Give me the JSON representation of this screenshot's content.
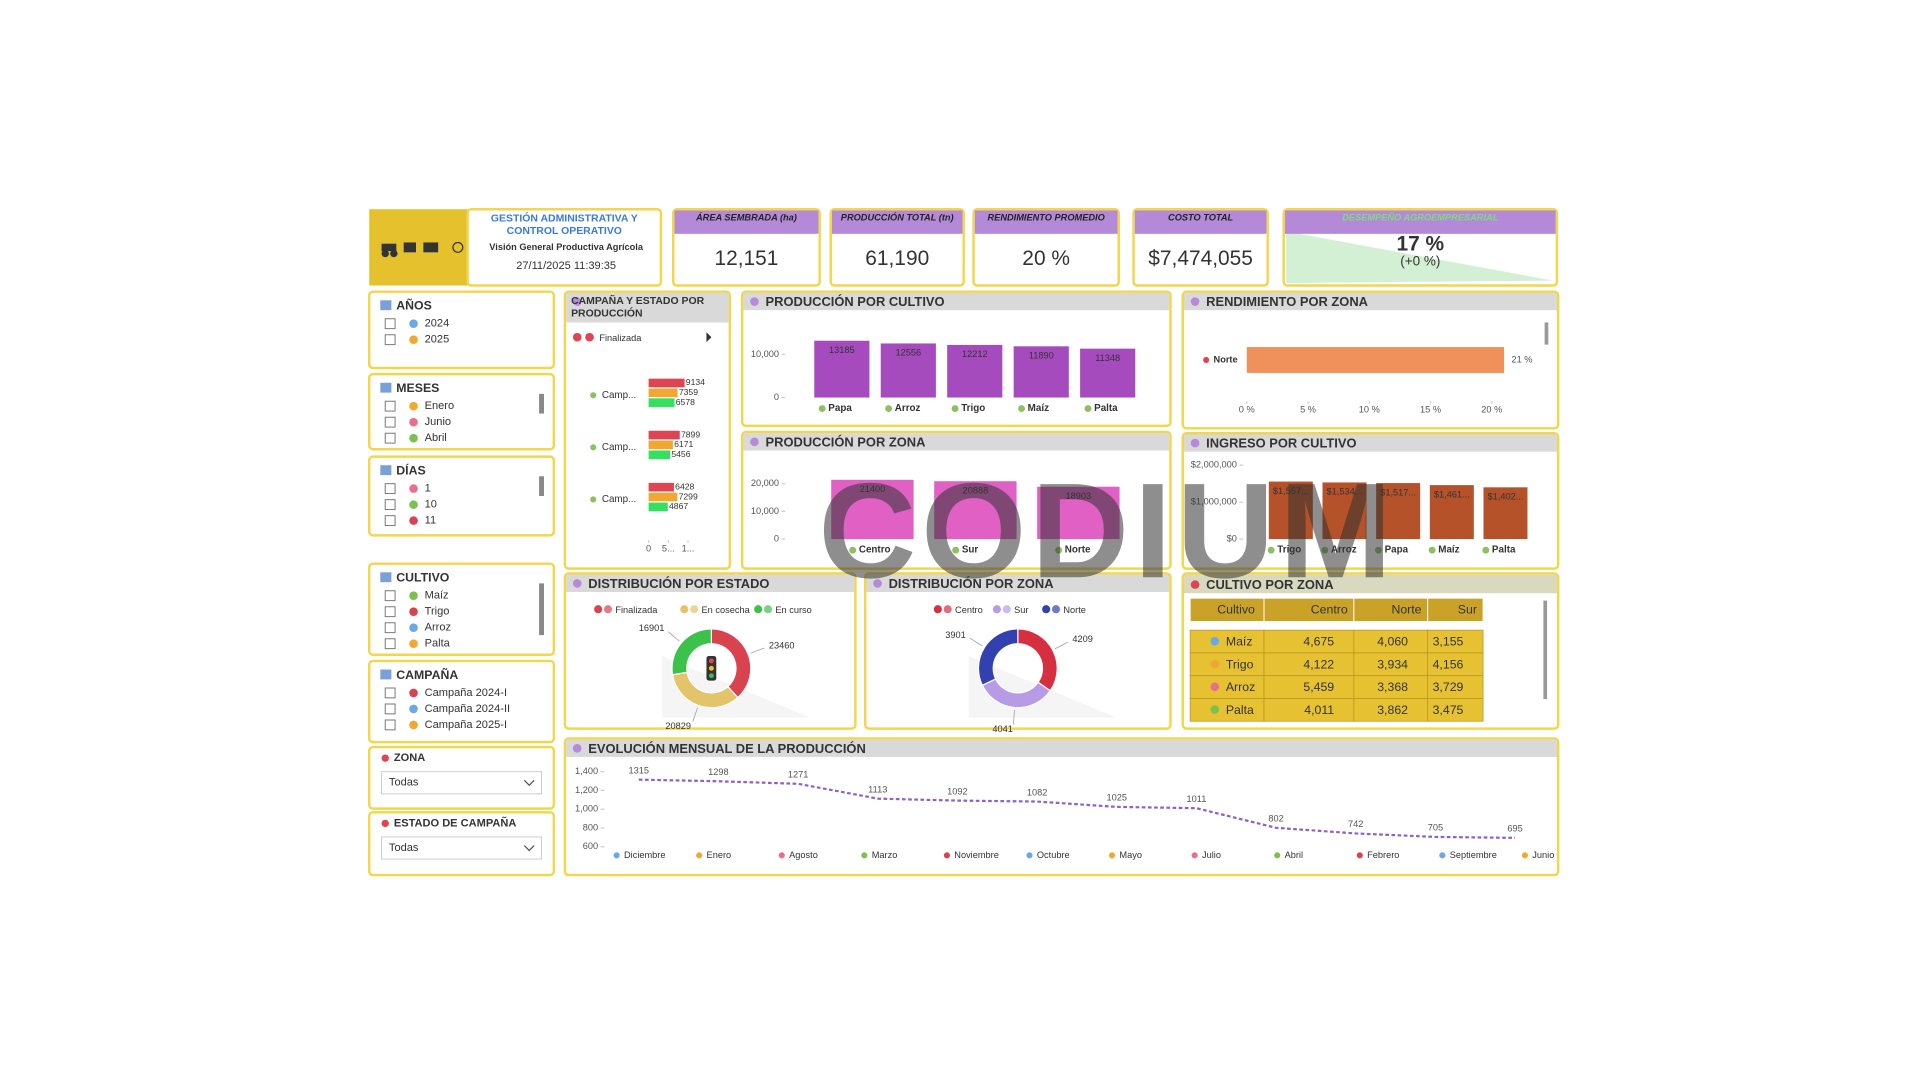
{
  "header": {
    "title": "GESTIÓN ADMINISTRATIVA Y CONTROL OPERATIVO",
    "subtitle": "Visión General Productiva Agrícola",
    "datetime": "27/11/2025 11:39:35"
  },
  "kpis": [
    {
      "label": "ÁREA SEMBRADA (ha)",
      "value": "12,151"
    },
    {
      "label": "PRODUCCIÓN TOTAL (tn)",
      "value": "61,190"
    },
    {
      "label": "RENDIMIENTO PROMEDIO",
      "value": "20 %"
    },
    {
      "label": "COSTO TOTAL",
      "value": "$7,474,055"
    },
    {
      "label": "DESEMPEÑO AGROEMPRESARIAL",
      "value": "17 %",
      "delta": "(+0 %)"
    }
  ],
  "slicers": [
    {
      "title": "AÑOS",
      "items": [
        2024,
        2025
      ]
    },
    {
      "title": "MESES",
      "items": [
        "Enero",
        "Junio",
        "Abril"
      ]
    },
    {
      "title": "DÍAS",
      "items": [
        1,
        10,
        11
      ]
    },
    {
      "title": "CULTIVO",
      "items": [
        "Maíz",
        "Trigo",
        "Arroz",
        "Palta"
      ]
    },
    {
      "title": "CAMPAÑA",
      "items": [
        "Campaña 2024-I",
        "Campaña 2024-II",
        "Campaña 2025-I"
      ]
    }
  ],
  "dropdowns": [
    {
      "title": "ZONA",
      "value": "Todas"
    },
    {
      "title": "ESTADO DE CAMPAÑA",
      "value": "Todas"
    }
  ],
  "chart_data": [
    {
      "type": "bar",
      "horizontal": true,
      "title": "CAMPAÑA Y ESTADO POR PRODUCCIÓN",
      "categories": [
        "Camp...",
        "Camp...",
        "Camp..."
      ],
      "series": [
        {
          "name": "Finalizada",
          "color": "#e04450",
          "values": [
            9134,
            7899,
            6428
          ]
        },
        {
          "color": "#f0a830",
          "values": [
            7359,
            6171,
            7299
          ]
        },
        {
          "color": "#34e060",
          "values": [
            6578,
            5456,
            4867
          ]
        }
      ],
      "xlim": [
        0,
        10000
      ],
      "xticks": [
        0,
        {
          "value": 5000,
          "label": "5..."
        },
        {
          "value": 10000,
          "label": "1..."
        }
      ]
    },
    {
      "type": "bar",
      "title": "PRODUCCIÓN POR CULTIVO",
      "categories": [
        "Papa",
        "Arroz",
        "Trigo",
        "Maíz",
        "Palta"
      ],
      "values": [
        13185,
        12556,
        12212,
        11890,
        11348
      ],
      "color": "#a64bbd",
      "ylim": [
        0,
        14000
      ],
      "yticks": [
        0,
        {
          "value": 10000,
          "label": "10,000"
        }
      ]
    },
    {
      "type": "bar",
      "title": "PRODUCCIÓN POR ZONA",
      "categories": [
        "Centro",
        "Sur",
        "Norte"
      ],
      "values": [
        21400,
        20888,
        18903
      ],
      "color": "#e060c4",
      "ylim": [
        0,
        24000
      ],
      "yticks": [
        0,
        {
          "value": 10000,
          "label": "10,000"
        },
        {
          "value": 20000,
          "label": "20,000"
        }
      ]
    },
    {
      "type": "bar",
      "horizontal": true,
      "title": "RENDIMIENTO POR ZONA",
      "categories": [
        "Norte"
      ],
      "values": [
        21
      ],
      "value_labels": [
        "21 %"
      ],
      "color": "#f0905a",
      "xlim": [
        0,
        22
      ],
      "xticks": [
        {
          "value": 0,
          "label": "0 %"
        },
        {
          "value": 5,
          "label": "5 %"
        },
        {
          "value": 10,
          "label": "10 %"
        },
        {
          "value": 15,
          "label": "15 %"
        },
        {
          "value": 20,
          "label": "20 %"
        }
      ]
    },
    {
      "type": "bar",
      "title": "INGRESO POR CULTIVO",
      "categories": [
        "Trigo",
        "Arroz",
        "Papa",
        "Maíz",
        "Palta"
      ],
      "values": [
        1557000,
        1534000,
        1517000,
        1461000,
        1402000
      ],
      "value_labels": [
        "$1,557...",
        "$1,534...",
        "$1,517...",
        "$1,461...",
        "$1,402..."
      ],
      "color": "#b5522a",
      "ylim": [
        0,
        2000000
      ],
      "yticks": [
        {
          "value": 0,
          "label": "$0"
        },
        {
          "value": 1000000,
          "label": "$1,000,000"
        },
        {
          "value": 2000000,
          "label": "$2,000,000"
        }
      ]
    },
    {
      "type": "donut",
      "title": "DISTRIBUCIÓN POR ESTADO",
      "categories": [
        "Finalizada",
        "En cosecha",
        "En curso"
      ],
      "values": [
        23460,
        20829,
        16901
      ],
      "colors": [
        "#d9434f",
        "#e3c46a",
        "#3cc24a"
      ]
    },
    {
      "type": "donut",
      "title": "DISTRIBUCIÓN POR ZONA",
      "categories": [
        "Centro",
        "Sur",
        "Norte"
      ],
      "values": [
        4209,
        4041,
        3901
      ],
      "colors": [
        "#d63040",
        "#b79be6",
        "#3340b0"
      ]
    },
    {
      "type": "line",
      "title": "EVOLUCIÓN MENSUAL DE LA PRODUCCIÓN",
      "categories": [
        "Diciembre",
        "Enero",
        "Agosto",
        "Marzo",
        "Noviembre",
        "Octubre",
        "Mayo",
        "Julio",
        "Abril",
        "Febrero",
        "Septiembre",
        "Junio"
      ],
      "values": [
        1315,
        1298,
        1271,
        1113,
        1092,
        1082,
        1025,
        1011,
        802,
        742,
        705,
        695
      ],
      "color": "#8a63c8",
      "ylim": [
        600,
        1400
      ],
      "yticks": [
        600,
        800,
        {
          "value": 1000,
          "label": "1,000"
        },
        {
          "value": 1200,
          "label": "1,200"
        },
        {
          "value": 1400,
          "label": "1,400"
        }
      ]
    }
  ],
  "table": {
    "title": "CULTIVO POR ZONA",
    "columns": [
      "Cultivo",
      "Centro",
      "Norte",
      "Sur"
    ],
    "rows": [
      [
        "Maíz",
        "4,675",
        "4,060",
        "3,155"
      ],
      [
        "Trigo",
        "4,122",
        "3,934",
        "4,156"
      ],
      [
        "Arroz",
        "5,459",
        "3,368",
        "3,729"
      ],
      [
        "Palta",
        "4,011",
        "3,862",
        "3,475"
      ]
    ]
  },
  "watermark": "CODIUM"
}
